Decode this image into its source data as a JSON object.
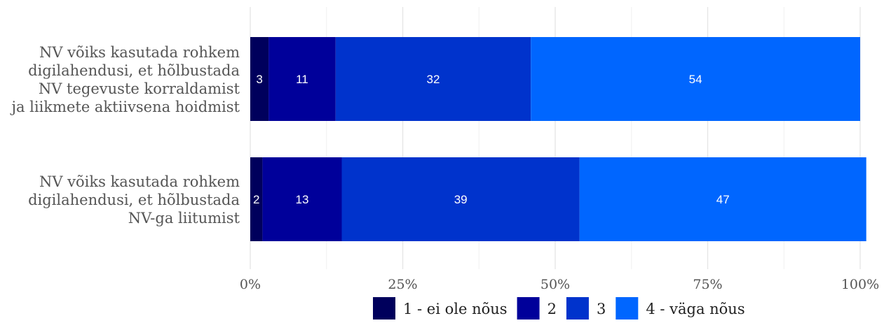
{
  "chart_data": {
    "type": "bar",
    "orientation": "horizontal",
    "stacked": true,
    "percent": true,
    "categories": [
      [
        "NV võiks kasutada rohkem",
        "digilahendusi, et hõlbustada",
        "NV tegevuste korraldamist",
        "ja liikmete aktiivsena hoidmist"
      ],
      [
        "NV võiks kasutada rohkem",
        "digilahendusi, et hõlbustada",
        "NV-ga liitumist"
      ]
    ],
    "series": [
      {
        "name": "1 - ei ole nõus",
        "color": "#00005c",
        "values": [
          3,
          2
        ]
      },
      {
        "name": "2",
        "color": "#00009a",
        "values": [
          11,
          13
        ]
      },
      {
        "name": "3",
        "color": "#0033cc",
        "values": [
          32,
          39
        ]
      },
      {
        "name": "4 - väga nõus",
        "color": "#0066ff",
        "values": [
          54,
          47
        ]
      }
    ],
    "xticks": [
      "0%",
      "25%",
      "50%",
      "75%",
      "100%"
    ],
    "xlim": [
      0,
      100
    ],
    "grid": true,
    "legend_position": "bottom"
  }
}
